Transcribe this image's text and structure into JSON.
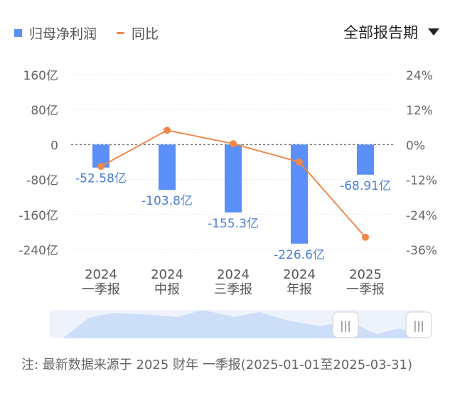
{
  "legend": {
    "bar_label": "归母净利润",
    "line_label": "同比"
  },
  "period_select": {
    "label": "全部报告期"
  },
  "colors": {
    "bar": "#5b8ff9",
    "line": "#f0884a",
    "bar_label": "#4a7fd9",
    "axis_text": "#666666",
    "navigator": "#c9dcf7"
  },
  "chart_data": {
    "type": "bar",
    "categories": [
      [
        "2024",
        "一季报"
      ],
      [
        "2024",
        "中报"
      ],
      [
        "2024",
        "三季报"
      ],
      [
        "2024",
        "年报"
      ],
      [
        "2025",
        "一季报"
      ]
    ],
    "series": [
      {
        "name": "归母净利润",
        "type": "bar",
        "axis": "left",
        "values": [
          -52.58,
          -103.8,
          -155.3,
          -226.6,
          -68.91
        ],
        "labels": [
          "-52.58亿",
          "-103.8亿",
          "-155.3亿",
          "-226.6亿",
          "-68.91亿"
        ]
      },
      {
        "name": "同比",
        "type": "line",
        "axis": "right",
        "values": [
          -7.5,
          4.9,
          0.3,
          -6.0,
          -31.8
        ]
      }
    ],
    "y_left": {
      "ticks": [
        160,
        80,
        0,
        -80,
        -160,
        -240
      ],
      "tick_labels": [
        "160亿",
        "80亿",
        "0",
        "-80亿",
        "-160亿",
        "-240亿"
      ],
      "range": [
        -240,
        160
      ]
    },
    "y_right": {
      "ticks": [
        24,
        12,
        0,
        -12,
        -24,
        -36
      ],
      "tick_labels": [
        "24%",
        "12%",
        "0%",
        "-12%",
        "-24%",
        "-36%"
      ],
      "range": [
        -36,
        24
      ]
    },
    "grid": true
  },
  "navigator": {
    "left_handle": "|||",
    "right_handle": "|||"
  },
  "footnote": "注: 最新数据来源于 2025 财年 一季报(2025-01-01至2025-03-31)"
}
